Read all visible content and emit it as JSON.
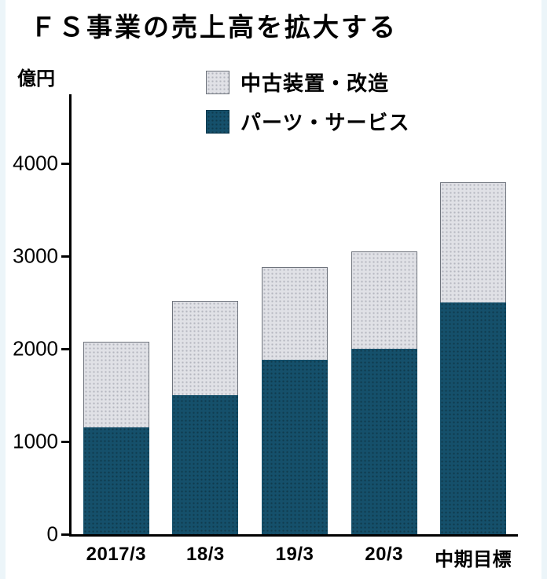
{
  "title": "ＦＳ事業の売上高を拡大する",
  "y_unit": "億円",
  "legend": [
    {
      "label": "中古装置・改造",
      "color": "#e0e1e6"
    },
    {
      "label": "パーツ・サービス",
      "color": "#15506b"
    }
  ],
  "chart_data": {
    "type": "bar",
    "stacked": true,
    "title": "ＦＳ事業の売上高を拡大する",
    "ylabel": "億円",
    "categories": [
      "2017/3",
      "18/3",
      "19/3",
      "20/3",
      "中期目標"
    ],
    "series": [
      {
        "name": "パーツ・サービス",
        "color": "#15506b",
        "values": [
          1150,
          1500,
          1880,
          2000,
          2500
        ]
      },
      {
        "name": "中古装置・改造",
        "color": "#e0e1e6",
        "values": [
          930,
          1020,
          1000,
          1050,
          1300
        ]
      }
    ],
    "totals": [
      2080,
      2520,
      2880,
      3050,
      3800
    ],
    "ylim": [
      0,
      4000
    ],
    "yticks": [
      0,
      1000,
      2000,
      3000,
      4000
    ],
    "grid": false,
    "legend_position": "top"
  }
}
